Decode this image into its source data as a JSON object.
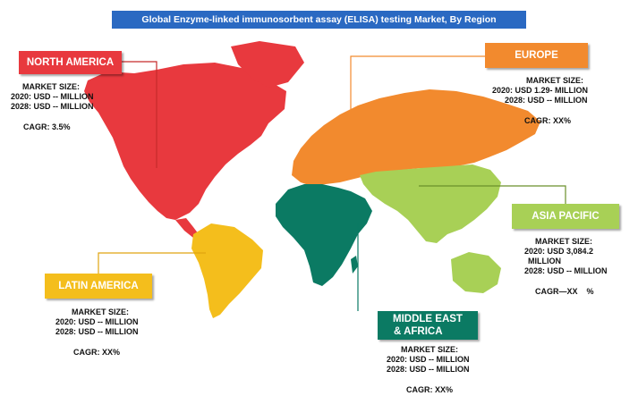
{
  "title": "Global Enzyme-linked immunosorbent assay (ELISA) testing Market, By Region",
  "colors": {
    "title_bg": "#2a69c2",
    "north_america": "#e8393e",
    "europe": "#f28a2e",
    "asia_pacific": "#a8d056",
    "latin_america": "#f4be1c",
    "mea": "#0b7a63"
  },
  "regions": {
    "north_america": {
      "name": "NORTH AMERICA",
      "market_size_label": "MARKET SIZE:",
      "y2020": "2020: USD -- MILLION",
      "y2028": "2028: USD -- MILLION",
      "cagr": "CAGR: 3.5%"
    },
    "europe": {
      "name": "EUROPE",
      "market_size_label": "MARKET SIZE:",
      "y2020": "2020: USD 1.29- MILLION",
      "y2028": "2028: USD -- MILLION",
      "cagr": "CAGR: XX%"
    },
    "asia_pacific": {
      "name": "ASIA PACIFIC",
      "market_size_label": "MARKET SIZE:",
      "y2020": "2020: USD  3,084.2",
      "y2020b": "MILLION",
      "y2028": "2028: USD -- MILLION",
      "cagr": "CAGR—XX    %"
    },
    "latin_america": {
      "name": "LATIN AMERICA",
      "market_size_label": "MARKET SIZE:",
      "y2020": "2020: USD -- MILLION",
      "y2028": "2028: USD -- MILLION",
      "cagr": "CAGR: XX%"
    },
    "mea": {
      "name_line1": "MIDDLE EAST",
      "name_line2": "& AFRICA",
      "market_size_label": "MARKET SIZE:",
      "y2020": "2020: USD -- MILLION",
      "y2028": "2028: USD -- MILLION",
      "cagr": "CAGR: XX%"
    }
  }
}
